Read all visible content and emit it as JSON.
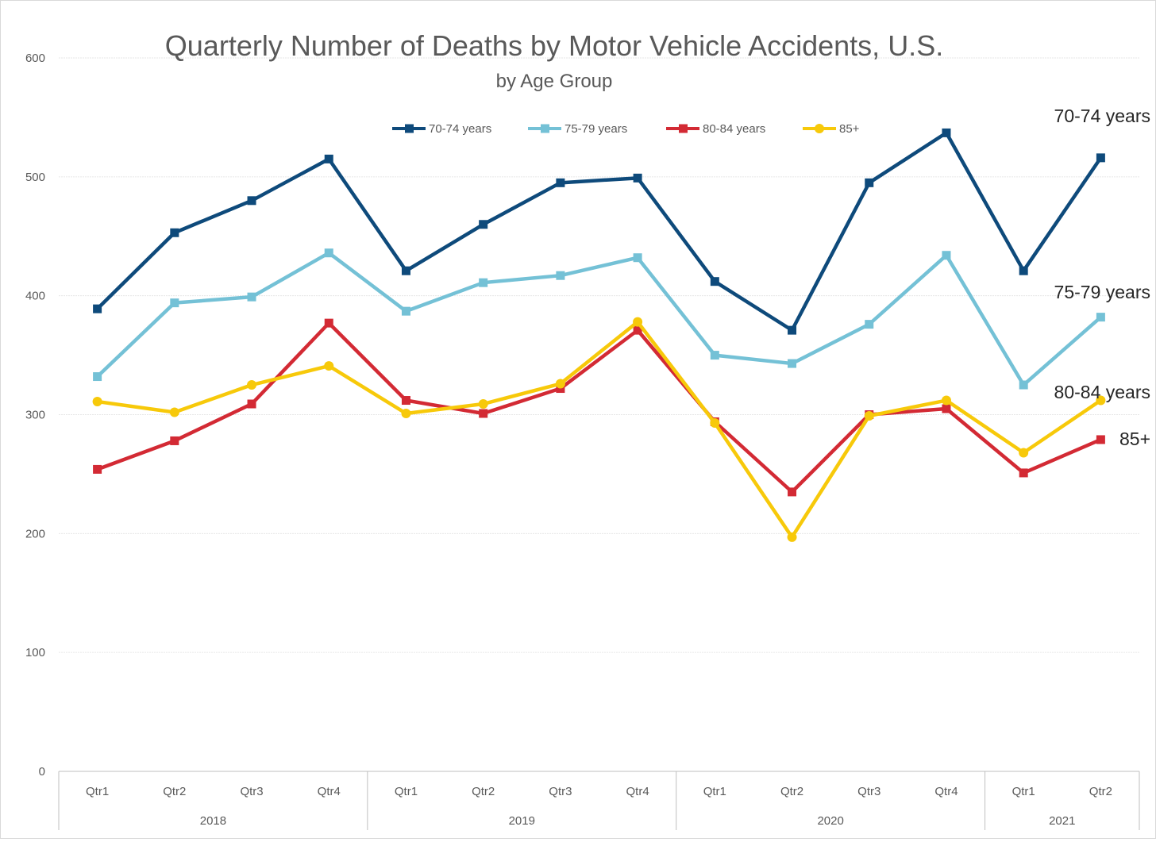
{
  "chart_data": {
    "type": "line",
    "title": "Quarterly Number of Deaths by Motor Vehicle Accidents, U.S.",
    "subtitle": "by Age Group",
    "xlabel": "",
    "ylabel": "",
    "ylim": [
      0,
      600
    ],
    "yticks": [
      0,
      100,
      200,
      300,
      400,
      500,
      600
    ],
    "grid": true,
    "legend_position": "top-center",
    "categories": [
      {
        "quarter": "Qtr1",
        "year": "2018"
      },
      {
        "quarter": "Qtr2",
        "year": "2018"
      },
      {
        "quarter": "Qtr3",
        "year": "2018"
      },
      {
        "quarter": "Qtr4",
        "year": "2018"
      },
      {
        "quarter": "Qtr1",
        "year": "2019"
      },
      {
        "quarter": "Qtr2",
        "year": "2019"
      },
      {
        "quarter": "Qtr3",
        "year": "2019"
      },
      {
        "quarter": "Qtr4",
        "year": "2019"
      },
      {
        "quarter": "Qtr1",
        "year": "2020"
      },
      {
        "quarter": "Qtr2",
        "year": "2020"
      },
      {
        "quarter": "Qtr3",
        "year": "2020"
      },
      {
        "quarter": "Qtr4",
        "year": "2020"
      },
      {
        "quarter": "Qtr1",
        "year": "2021"
      },
      {
        "quarter": "Qtr2",
        "year": "2021"
      }
    ],
    "year_groups": [
      {
        "label": "2018",
        "count": 4
      },
      {
        "label": "2019",
        "count": 4
      },
      {
        "label": "2020",
        "count": 4
      },
      {
        "label": "2021",
        "count": 2
      }
    ],
    "series": [
      {
        "name": "70-74 years",
        "end_label": "70-74 years",
        "color": "#0e4a7b",
        "marker": "square",
        "values": [
          389,
          453,
          480,
          515,
          421,
          460,
          495,
          499,
          412,
          371,
          495,
          537,
          421,
          516
        ]
      },
      {
        "name": "75-79 years",
        "end_label": "75-79 years",
        "color": "#74c1d6",
        "marker": "square",
        "values": [
          332,
          394,
          399,
          436,
          387,
          411,
          417,
          432,
          350,
          343,
          376,
          434,
          325,
          382
        ]
      },
      {
        "name": "80-84 years",
        "end_label": "80-84 years",
        "color": "#d32a34",
        "marker": "square",
        "values": [
          254,
          278,
          309,
          377,
          312,
          301,
          322,
          371,
          294,
          235,
          300,
          305,
          251,
          279
        ]
      },
      {
        "name": "85+",
        "end_label": "85+",
        "color": "#f7c90a",
        "marker": "circle",
        "values": [
          311,
          302,
          325,
          341,
          301,
          309,
          326,
          378,
          293,
          197,
          299,
          312,
          268,
          312
        ]
      }
    ]
  }
}
